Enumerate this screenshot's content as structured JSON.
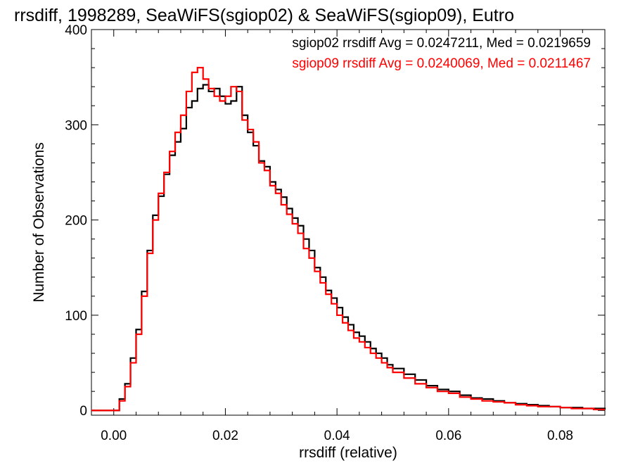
{
  "chart_data": {
    "type": "line",
    "title": "rrsdiff, 1998289, SeaWiFS(sgiop02) & SeaWiFS(sgiop09), Eutro",
    "xlabel": "rrsdiff (relative)",
    "ylabel": "Number of Observations",
    "xlim": [
      -0.004,
      0.088
    ],
    "ylim": [
      -5,
      400
    ],
    "xticks": [
      0.0,
      0.02,
      0.04,
      0.06,
      0.08
    ],
    "xtick_labels": [
      "0.00",
      "0.02",
      "0.04",
      "0.06",
      "0.08"
    ],
    "yticks": [
      0,
      100,
      200,
      300,
      400
    ],
    "ytick_labels": [
      "0",
      "100",
      "200",
      "300",
      "400"
    ],
    "grid": false,
    "style": "step-histogram",
    "annotations": [
      {
        "text": "sgiop02 rrsdiff Avg = 0.0247211, Med = 0.0219659",
        "color": "#000000"
      },
      {
        "text": "sgiop09 rrsdiff Avg = 0.0240069, Med = 0.0211467",
        "color": "#ff0000"
      }
    ],
    "series": [
      {
        "color": "#000000",
        "x": [
          -0.004,
          0.0,
          0.001,
          0.002,
          0.003,
          0.004,
          0.005,
          0.006,
          0.007,
          0.008,
          0.009,
          0.01,
          0.011,
          0.012,
          0.013,
          0.014,
          0.015,
          0.016,
          0.017,
          0.018,
          0.019,
          0.02,
          0.021,
          0.022,
          0.023,
          0.024,
          0.025,
          0.026,
          0.027,
          0.028,
          0.029,
          0.03,
          0.031,
          0.032,
          0.033,
          0.034,
          0.035,
          0.036,
          0.037,
          0.038,
          0.039,
          0.04,
          0.041,
          0.042,
          0.043,
          0.044,
          0.045,
          0.046,
          0.047,
          0.048,
          0.049,
          0.05,
          0.052,
          0.054,
          0.056,
          0.058,
          0.06,
          0.062,
          0.064,
          0.066,
          0.068,
          0.07,
          0.072,
          0.074,
          0.076,
          0.078,
          0.08,
          0.082,
          0.084,
          0.086,
          0.088
        ],
        "values": [
          0,
          0,
          12,
          28,
          55,
          85,
          125,
          168,
          205,
          225,
          248,
          268,
          282,
          296,
          318,
          325,
          338,
          342,
          335,
          338,
          330,
          322,
          325,
          340,
          310,
          292,
          278,
          262,
          256,
          240,
          232,
          224,
          212,
          202,
          194,
          180,
          168,
          150,
          140,
          126,
          118,
          108,
          98,
          90,
          82,
          78,
          72,
          65,
          60,
          55,
          48,
          44,
          38,
          32,
          26,
          22,
          20,
          16,
          13,
          12,
          10,
          8,
          7,
          6,
          5,
          4,
          3,
          3,
          2,
          2,
          1
        ]
      },
      {
        "color": "#ff0000",
        "x": [
          -0.004,
          0.0,
          0.001,
          0.002,
          0.003,
          0.004,
          0.005,
          0.006,
          0.007,
          0.008,
          0.009,
          0.01,
          0.011,
          0.012,
          0.013,
          0.014,
          0.015,
          0.016,
          0.017,
          0.018,
          0.019,
          0.02,
          0.021,
          0.022,
          0.023,
          0.024,
          0.025,
          0.026,
          0.027,
          0.028,
          0.029,
          0.03,
          0.031,
          0.032,
          0.033,
          0.034,
          0.035,
          0.036,
          0.037,
          0.038,
          0.039,
          0.04,
          0.041,
          0.042,
          0.043,
          0.044,
          0.045,
          0.046,
          0.047,
          0.048,
          0.049,
          0.05,
          0.052,
          0.054,
          0.056,
          0.058,
          0.06,
          0.062,
          0.064,
          0.066,
          0.068,
          0.07,
          0.072,
          0.074,
          0.076,
          0.078,
          0.08,
          0.082,
          0.084,
          0.086,
          0.088
        ],
        "values": [
          0,
          0,
          10,
          25,
          50,
          80,
          120,
          165,
          200,
          228,
          250,
          272,
          292,
          310,
          335,
          355,
          360,
          348,
          338,
          330,
          325,
          330,
          340,
          335,
          305,
          295,
          282,
          260,
          252,
          236,
          228,
          216,
          206,
          196,
          186,
          170,
          160,
          146,
          134,
          122,
          112,
          100,
          92,
          84,
          76,
          72,
          66,
          60,
          55,
          50,
          45,
          40,
          34,
          28,
          24,
          20,
          18,
          14,
          12,
          10,
          9,
          8,
          6,
          5,
          4,
          4,
          3,
          2,
          2,
          1,
          1
        ]
      }
    ]
  }
}
